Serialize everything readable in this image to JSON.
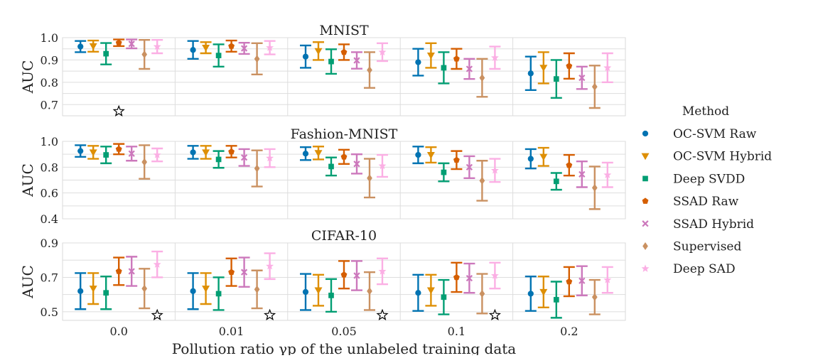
{
  "chart_data": {
    "type": "errorbar",
    "xlabel": "Pollution ratio γp of the unlabeled training data",
    "ylabel": "AUC",
    "categories": [
      "0.0",
      "0.01",
      "0.05",
      "0.1",
      "0.2"
    ],
    "legend": {
      "title": "Method",
      "placement": "right",
      "entries": [
        "OC-SVM Raw",
        "OC-SVM Hybrid",
        "Deep SVDD",
        "SSAD Raw",
        "SSAD Hybrid",
        "Supervised",
        "Deep SAD"
      ]
    },
    "methods": [
      {
        "name": "OC-SVM Raw",
        "color": "#0173b2",
        "marker": "circle"
      },
      {
        "name": "OC-SVM Hybrid",
        "color": "#de8f05",
        "marker": "triangle-down"
      },
      {
        "name": "Deep SVDD",
        "color": "#029e73",
        "marker": "square"
      },
      {
        "name": "SSAD Raw",
        "color": "#d55e00",
        "marker": "pentagon"
      },
      {
        "name": "SSAD Hybrid",
        "color": "#cc78bc",
        "marker": "x"
      },
      {
        "name": "Supervised",
        "color": "#ca9161",
        "marker": "diamond"
      },
      {
        "name": "Deep SAD",
        "color": "#fbafe4",
        "marker": "star"
      }
    ],
    "panels": [
      {
        "title": "MNIST",
        "ylim": [
          0.65,
          1.0
        ],
        "yticks": [
          "0.7",
          "0.8",
          "0.9",
          "1.0"
        ],
        "ytick_values": [
          0.7,
          0.8,
          0.9,
          1.0
        ],
        "supervised_star": {
          "category": "0.0",
          "value": 0.67
        },
        "series": [
          {
            "name": "OC-SVM Raw",
            "mean": [
              0.96,
              0.945,
              0.915,
              0.89,
              0.84
            ],
            "std": [
              0.025,
              0.04,
              0.05,
              0.06,
              0.075
            ]
          },
          {
            "name": "OC-SVM Hybrid",
            "mean": [
              0.962,
              0.955,
              0.94,
              0.92,
              0.865
            ],
            "std": [
              0.025,
              0.025,
              0.04,
              0.055,
              0.07
            ]
          },
          {
            "name": "Deep SVDD",
            "mean": [
              0.928,
              0.92,
              0.893,
              0.865,
              0.815
            ],
            "std": [
              0.048,
              0.05,
              0.055,
              0.07,
              0.085
            ]
          },
          {
            "name": "SSAD Raw",
            "mean": [
              0.977,
              0.962,
              0.935,
              0.905,
              0.873
            ],
            "std": [
              0.015,
              0.025,
              0.035,
              0.045,
              0.057
            ]
          },
          {
            "name": "SSAD Hybrid",
            "mean": [
              0.972,
              0.952,
              0.898,
              0.86,
              0.82
            ],
            "std": [
              0.02,
              0.025,
              0.037,
              0.045,
              0.05
            ]
          },
          {
            "name": "Supervised",
            "mean": [
              0.925,
              0.905,
              0.855,
              0.82,
              0.78
            ],
            "std": [
              0.065,
              0.07,
              0.08,
              0.085,
              0.095
            ]
          },
          {
            "name": "Deep SAD",
            "mean": [
              0.96,
              0.955,
              0.935,
              0.91,
              0.865
            ],
            "std": [
              0.03,
              0.03,
              0.04,
              0.05,
              0.065
            ]
          }
        ]
      },
      {
        "title": "Fashion-MNIST",
        "ylim": [
          0.4,
          1.0
        ],
        "yticks": [
          "0.4",
          "0.6",
          "0.8",
          "1.0"
        ],
        "ytick_values": [
          0.4,
          0.6,
          0.8,
          1.0
        ],
        "supervised_star": null,
        "series": [
          {
            "name": "OC-SVM Raw",
            "mean": [
              0.925,
              0.915,
              0.905,
              0.895,
              0.865
            ],
            "std": [
              0.045,
              0.05,
              0.05,
              0.065,
              0.075
            ]
          },
          {
            "name": "OC-SVM Hybrid",
            "mean": [
              0.915,
              0.915,
              0.91,
              0.895,
              0.88
            ],
            "std": [
              0.05,
              0.05,
              0.05,
              0.06,
              0.07
            ]
          },
          {
            "name": "Deep SVDD",
            "mean": [
              0.895,
              0.86,
              0.805,
              0.76,
              0.69
            ],
            "std": [
              0.065,
              0.065,
              0.07,
              0.07,
              0.065
            ]
          },
          {
            "name": "SSAD Raw",
            "mean": [
              0.94,
              0.92,
              0.88,
              0.855,
              0.815
            ],
            "std": [
              0.04,
              0.045,
              0.055,
              0.07,
              0.08
            ]
          },
          {
            "name": "SSAD Hybrid",
            "mean": [
              0.905,
              0.875,
              0.825,
              0.8,
              0.745
            ],
            "std": [
              0.055,
              0.065,
              0.075,
              0.085,
              0.1
            ]
          },
          {
            "name": "Supervised",
            "mean": [
              0.84,
              0.79,
              0.715,
              0.695,
              0.64
            ],
            "std": [
              0.13,
              0.14,
              0.15,
              0.155,
              0.165
            ]
          },
          {
            "name": "Deep SAD",
            "mean": [
              0.895,
              0.87,
              0.81,
              0.775,
              0.74
            ],
            "std": [
              0.05,
              0.07,
              0.085,
              0.09,
              0.095
            ]
          }
        ]
      },
      {
        "title": "CIFAR-10",
        "ylim": [
          0.45,
          0.9
        ],
        "yticks": [
          "0.5",
          "0.7",
          "0.9"
        ],
        "ytick_values": [
          0.5,
          0.7,
          0.9
        ],
        "supervised_star": {
          "categories": [
            "0.0",
            "0.01",
            "0.05",
            "0.1"
          ],
          "value": 0.48
        },
        "series": [
          {
            "name": "OC-SVM Raw",
            "mean": [
              0.62,
              0.62,
              0.615,
              0.61,
              0.605
            ],
            "std": [
              0.105,
              0.105,
              0.105,
              0.105,
              0.1
            ]
          },
          {
            "name": "OC-SVM Hybrid",
            "mean": [
              0.635,
              0.635,
              0.625,
              0.625,
              0.615
            ],
            "std": [
              0.09,
              0.09,
              0.09,
              0.09,
              0.09
            ]
          },
          {
            "name": "Deep SVDD",
            "mean": [
              0.61,
              0.605,
              0.595,
              0.585,
              0.57
            ],
            "std": [
              0.095,
              0.095,
              0.095,
              0.1,
              0.105
            ]
          },
          {
            "name": "SSAD Raw",
            "mean": [
              0.735,
              0.73,
              0.715,
              0.7,
              0.675
            ],
            "std": [
              0.08,
              0.08,
              0.08,
              0.085,
              0.085
            ]
          },
          {
            "name": "SSAD Hybrid",
            "mean": [
              0.735,
              0.73,
              0.71,
              0.695,
              0.68
            ],
            "std": [
              0.085,
              0.085,
              0.085,
              0.085,
              0.085
            ]
          },
          {
            "name": "Supervised",
            "mean": [
              0.635,
              0.63,
              0.62,
              0.605,
              0.585
            ],
            "std": [
              0.115,
              0.11,
              0.11,
              0.115,
              0.1
            ]
          },
          {
            "name": "Deep SAD",
            "mean": [
              0.775,
              0.765,
              0.735,
              0.71,
              0.685
            ],
            "std": [
              0.075,
              0.075,
              0.075,
              0.075,
              0.075
            ]
          }
        ]
      }
    ]
  }
}
